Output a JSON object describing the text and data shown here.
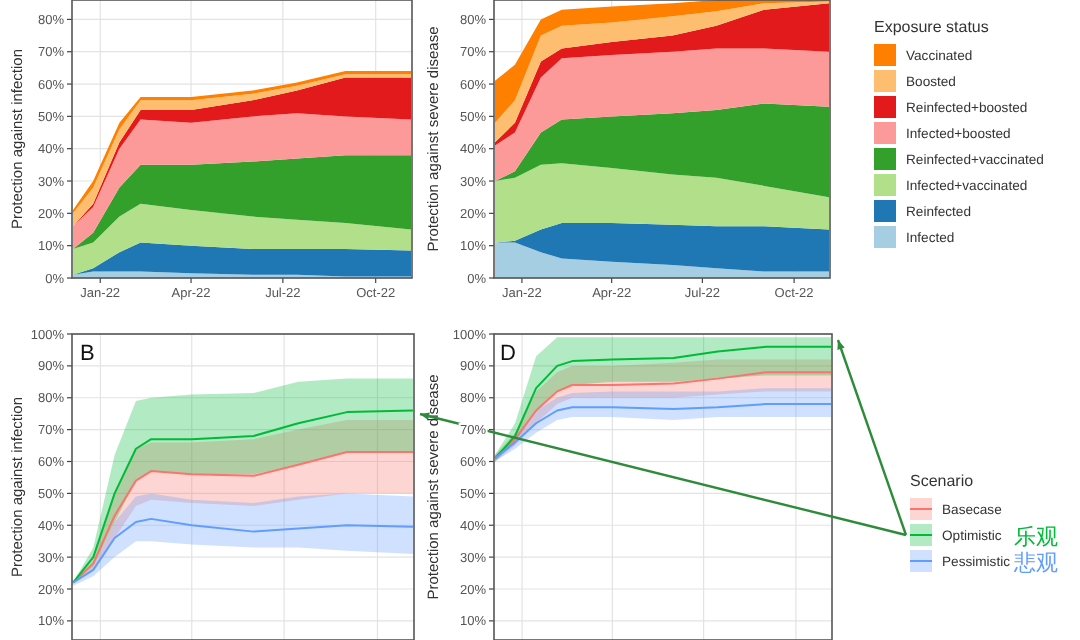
{
  "chart_data": [
    {
      "type": "area",
      "stacked": true,
      "ylabel": "Protection against infection",
      "grid": true,
      "x": [
        "2021-12-05",
        "2021-12-25",
        "2022-01-20",
        "2022-02-10",
        "2022-04-01",
        "2022-06-01",
        "2022-07-15",
        "2022-09-01",
        "2022-11-05"
      ],
      "xlim": [
        "2021-12-04",
        "2022-11-06"
      ],
      "ylim": [
        0,
        86
      ],
      "xticks": [
        {
          "value": "2022-01-01",
          "label": "Jan-22"
        },
        {
          "value": "2022-04-01",
          "label": "Apr-22"
        },
        {
          "value": "2022-07-01",
          "label": "Jul-22"
        },
        {
          "value": "2022-10-01",
          "label": "Oct-22"
        }
      ],
      "yticks": [
        {
          "value": 0,
          "label": "0%"
        },
        {
          "value": 10,
          "label": "10%"
        },
        {
          "value": 20,
          "label": "20%"
        },
        {
          "value": 30,
          "label": "30%"
        },
        {
          "value": 40,
          "label": "40%"
        },
        {
          "value": 50,
          "label": "50%"
        },
        {
          "value": 60,
          "label": "60%"
        },
        {
          "value": 70,
          "label": "70%"
        },
        {
          "value": 80,
          "label": "80%"
        }
      ],
      "series": [
        {
          "color": "#a6cee3",
          "values": [
            1,
            2,
            2,
            2,
            1.5,
            1,
            1,
            0.5,
            0.5
          ]
        },
        {
          "color": "#1f78b4",
          "values": [
            0,
            1,
            6,
            9,
            8.5,
            8,
            8,
            8.5,
            8
          ]
        },
        {
          "color": "#b2df8a",
          "values": [
            8,
            8,
            11,
            12,
            11,
            10,
            9,
            8,
            6.5
          ]
        },
        {
          "color": "#33a02c",
          "values": [
            0,
            3,
            9,
            12,
            14,
            17,
            19,
            21,
            23
          ]
        },
        {
          "color": "#fb9a99",
          "values": [
            7,
            8,
            12,
            14,
            13,
            14,
            14,
            12,
            11
          ]
        },
        {
          "color": "#e31a1c",
          "values": [
            0,
            1,
            2,
            3,
            4,
            5,
            7,
            12,
            13
          ]
        },
        {
          "color": "#fdbf6f",
          "values": [
            4,
            5,
            4,
            3,
            3,
            2,
            1.5,
            1,
            1
          ]
        },
        {
          "color": "#ff7f00",
          "values": [
            1,
            2,
            2,
            1,
            1,
            1,
            1,
            1,
            1
          ]
        }
      ]
    },
    {
      "type": "area",
      "stacked": true,
      "ylabel": "Protection against severe disease",
      "legend": "right",
      "legend_title": "Exposure status",
      "grid": true,
      "x": [
        "2021-12-05",
        "2021-12-25",
        "2022-01-20",
        "2022-02-10",
        "2022-04-01",
        "2022-06-01",
        "2022-07-15",
        "2022-09-01",
        "2022-11-05"
      ],
      "xlim": [
        "2021-12-04",
        "2022-11-06"
      ],
      "ylim": [
        0,
        86
      ],
      "xticks": [
        {
          "value": "2022-01-01",
          "label": "Jan-22"
        },
        {
          "value": "2022-04-01",
          "label": "Apr-22"
        },
        {
          "value": "2022-07-01",
          "label": "Jul-22"
        },
        {
          "value": "2022-10-01",
          "label": "Oct-22"
        }
      ],
      "yticks": [
        {
          "value": 0,
          "label": "0%"
        },
        {
          "value": 10,
          "label": "10%"
        },
        {
          "value": 20,
          "label": "20%"
        },
        {
          "value": 30,
          "label": "30%"
        },
        {
          "value": 40,
          "label": "40%"
        },
        {
          "value": 50,
          "label": "50%"
        },
        {
          "value": 60,
          "label": "60%"
        },
        {
          "value": 70,
          "label": "70%"
        },
        {
          "value": 80,
          "label": "80%"
        }
      ],
      "series": [
        {
          "name": "Infected",
          "color": "#a6cee3",
          "values": [
            11,
            11,
            8,
            6,
            5,
            4,
            3,
            2,
            2
          ]
        },
        {
          "name": "Reinfected",
          "color": "#1f78b4",
          "values": [
            0,
            0.5,
            7,
            11,
            12,
            12.5,
            13,
            14,
            13
          ]
        },
        {
          "name": "Infected+vaccinated",
          "color": "#b2df8a",
          "values": [
            19,
            19.5,
            20,
            18.5,
            17,
            15.5,
            15,
            12.5,
            10
          ]
        },
        {
          "name": "Reinfected+vaccinated",
          "color": "#33a02c",
          "values": [
            0,
            2,
            10,
            13.5,
            16,
            19,
            21,
            25.5,
            28
          ]
        },
        {
          "name": "Infected+boosted",
          "color": "#fb9a99",
          "values": [
            11,
            12,
            17,
            19,
            19,
            19,
            19,
            17,
            17
          ]
        },
        {
          "name": "Reinfected+boosted",
          "color": "#e31a1c",
          "values": [
            1,
            3,
            5,
            3,
            4,
            5,
            7,
            12,
            15
          ]
        },
        {
          "name": "Boosted",
          "color": "#fdbf6f",
          "values": [
            6,
            7,
            8,
            7,
            6,
            6,
            4.5,
            2,
            0.5
          ]
        },
        {
          "name": "Vaccinated",
          "color": "#ff7f00",
          "values": [
            13,
            11,
            5,
            5,
            5,
            4,
            3.5,
            1,
            0.5
          ]
        }
      ]
    },
    {
      "type": "line",
      "ylabel": "Protection against infection",
      "grid": true,
      "tick_labels": "y",
      "annotations": [
        "B"
      ],
      "x": [
        "2021-12-05",
        "2021-12-25",
        "2022-01-15",
        "2022-02-05",
        "2022-02-20",
        "2022-04-01",
        "2022-06-01",
        "2022-07-15",
        "2022-09-01",
        "2022-11-05"
      ],
      "xlim": [
        "2021-12-04",
        "2022-11-06"
      ],
      "ylim": [
        4,
        100
      ],
      "xticks": [
        {
          "value": "2022-01-01",
          "label": null
        },
        {
          "value": "2022-04-01",
          "label": null
        },
        {
          "value": "2022-07-01",
          "label": null
        },
        {
          "value": "2022-10-01",
          "label": null
        }
      ],
      "yticks": [
        {
          "value": 10,
          "label": "10%"
        },
        {
          "value": 20,
          "label": "20%"
        },
        {
          "value": 30,
          "label": "30%"
        },
        {
          "value": 40,
          "label": "40%"
        },
        {
          "value": 50,
          "label": "50%"
        },
        {
          "value": 60,
          "label": "60%"
        },
        {
          "value": 70,
          "label": "70%"
        },
        {
          "value": 80,
          "label": "80%"
        },
        {
          "value": 90,
          "label": "90%"
        },
        {
          "value": 100,
          "label": "100%"
        }
      ],
      "series": [
        {
          "color": "#f8766d",
          "values": [
            22,
            28,
            43,
            54,
            57,
            56,
            55.5,
            59,
            63,
            63
          ],
          "lower": [
            22,
            26,
            36,
            46,
            48,
            47,
            46,
            48,
            50,
            50
          ],
          "upper": [
            22,
            29,
            50,
            64,
            66,
            66,
            67,
            70,
            73,
            73
          ]
        },
        {
          "color": "#00ba38",
          "values": [
            22,
            30,
            50,
            64,
            67,
            67,
            68,
            72,
            75.5,
            76
          ],
          "lower": [
            22,
            27,
            41,
            54,
            57,
            56,
            56,
            59,
            63,
            63
          ],
          "upper": [
            22,
            33,
            62,
            79,
            80,
            81,
            81.5,
            85,
            86,
            86
          ]
        },
        {
          "color": "#619cff",
          "values": [
            22,
            26,
            36,
            41,
            42,
            40,
            38,
            39,
            40,
            39.5
          ],
          "lower": [
            21,
            24,
            30,
            35,
            35,
            34,
            33,
            33,
            32,
            31
          ],
          "upper": [
            22,
            27,
            41,
            49,
            50,
            48,
            47,
            49,
            50,
            49
          ]
        }
      ]
    },
    {
      "type": "line",
      "ylabel": "Protection against severe disease",
      "grid": true,
      "tick_labels": "y",
      "legend": "right",
      "legend_title": "Scenario",
      "annotations": [
        "D",
        "乐观",
        "悲观"
      ],
      "x": [
        "2021-12-05",
        "2021-12-25",
        "2022-01-15",
        "2022-02-05",
        "2022-02-20",
        "2022-04-01",
        "2022-06-01",
        "2022-07-15",
        "2022-09-01",
        "2022-11-05"
      ],
      "xlim": [
        "2021-12-04",
        "2022-11-06"
      ],
      "ylim": [
        4,
        100
      ],
      "xticks": [
        {
          "value": "2022-01-01",
          "label": null
        },
        {
          "value": "2022-04-01",
          "label": null
        },
        {
          "value": "2022-07-01",
          "label": null
        },
        {
          "value": "2022-10-01",
          "label": null
        }
      ],
      "yticks": [
        {
          "value": 10,
          "label": "10%"
        },
        {
          "value": 20,
          "label": "20%"
        },
        {
          "value": 30,
          "label": "30%"
        },
        {
          "value": 40,
          "label": "40%"
        },
        {
          "value": 50,
          "label": "50%"
        },
        {
          "value": 60,
          "label": "60%"
        },
        {
          "value": 70,
          "label": "70%"
        },
        {
          "value": 80,
          "label": "80%"
        },
        {
          "value": 90,
          "label": "90%"
        },
        {
          "value": 100,
          "label": "100%"
        }
      ],
      "series": [
        {
          "name": "Basecase",
          "color": "#f8766d",
          "values": [
            61,
            67,
            76,
            82,
            84,
            84,
            84.5,
            86,
            88,
            88
          ],
          "lower": [
            60,
            65,
            72,
            78,
            80,
            80,
            80,
            81,
            82,
            82
          ],
          "upper": [
            62,
            69,
            82,
            88,
            90,
            90,
            91,
            92,
            92,
            92
          ]
        },
        {
          "name": "Optimistic",
          "color": "#00ba38",
          "values": [
            61,
            68,
            83,
            90,
            91.5,
            92,
            92.5,
            94.5,
            96,
            96
          ],
          "lower": [
            60,
            66,
            76,
            82,
            84,
            85,
            85,
            86,
            87,
            87
          ],
          "upper": [
            62,
            72,
            93,
            99,
            99,
            99,
            99,
            99,
            99,
            99
          ]
        },
        {
          "name": "Pessimistic",
          "color": "#619cff",
          "values": [
            61,
            66,
            72,
            76,
            77,
            77,
            76.5,
            77,
            78,
            78
          ],
          "lower": [
            60,
            64,
            69,
            73,
            74,
            74,
            73,
            74,
            74,
            74
          ],
          "upper": [
            62,
            67,
            76,
            80,
            81.5,
            82,
            82,
            82,
            83,
            83
          ]
        }
      ]
    }
  ]
}
